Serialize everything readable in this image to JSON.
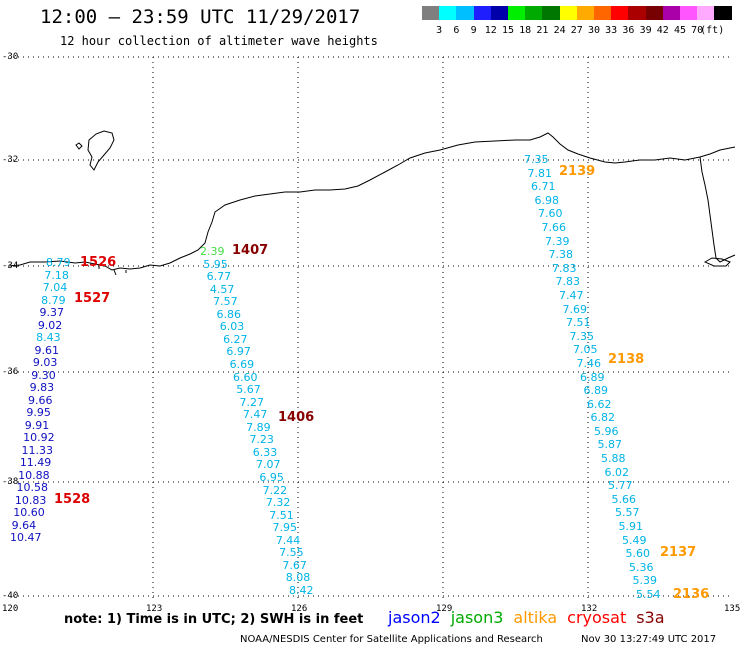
{
  "header": {
    "title": "12:00 – 23:59 UTC 11/29/2017",
    "subtitle": "12 hour collection of altimeter wave heights"
  },
  "color_scale": {
    "unit": "(ft)",
    "ticks": [
      "3",
      "6",
      "9",
      "12",
      "15",
      "18",
      "21",
      "24",
      "27",
      "30",
      "33",
      "36",
      "39",
      "42",
      "45",
      "70"
    ],
    "colors": [
      "#7f7f7f",
      "#00ffff",
      "#00bfff",
      "#1e1eff",
      "#0000aa",
      "#00ee00",
      "#00aa00",
      "#007700",
      "#ffff00",
      "#ffaa00",
      "#ff6600",
      "#ff0000",
      "#aa0000",
      "#770000",
      "#aa00aa",
      "#ff55ff",
      "#ffaaff",
      "#000000"
    ]
  },
  "axes": {
    "lat_labels": [
      "-30",
      "-32",
      "-34",
      "-36",
      "-38",
      "-40"
    ],
    "lon_labels": [
      "120",
      "123",
      "126",
      "129",
      "132",
      "135"
    ]
  },
  "wave_heights": {
    "track_a": [
      "8.79",
      "7.18",
      "7.04",
      "8.79",
      "9.37",
      "9.02",
      "8.43",
      "9.61",
      "9.03",
      "9.30",
      "9.83",
      "9.66",
      "9.95",
      "9.91",
      "10.92",
      "11.33",
      "11.49",
      "10.88",
      "10.58",
      "10.83",
      "10.60",
      "9.64",
      "10.47"
    ],
    "track_b": [
      "2.39",
      "5.95",
      "6.77",
      "4.57",
      "7.57",
      "6.86",
      "6.03",
      "6.27",
      "6.97",
      "6.69",
      "6.60",
      "5.67",
      "7.27",
      "7.47",
      "7.89",
      "7.23",
      "6.33",
      "7.07",
      "6.95",
      "7.22",
      "7.32",
      "7.51",
      "7.95",
      "7.44",
      "7.55",
      "7.67",
      "8.08",
      "8.42"
    ],
    "track_c": [
      "7.35",
      "7.81",
      "6.71",
      "6.98",
      "7.60",
      "7.66",
      "7.39",
      "7.38",
      "7.83",
      "7.83",
      "7.47",
      "7.69",
      "7.51",
      "7.35",
      "7.05",
      "7.46",
      "6.89",
      "6.89",
      "6.62",
      "6.82",
      "5.96",
      "5.87",
      "5.88",
      "6.02",
      "5.77",
      "5.66",
      "5.57",
      "5.91",
      "5.49",
      "5.60",
      "5.36",
      "5.39",
      "5.54"
    ]
  },
  "pass_numbers": {
    "p1526": "1526",
    "p1527": "1527",
    "p1528": "1528",
    "p1407": "1407",
    "p1406": "1406",
    "p2139": "2139",
    "p2138": "2138",
    "p2137": "2137",
    "p2136": "2136"
  },
  "footer": {
    "note": "note: 1) Time is in UTC; 2) SWH is in feet",
    "satellites": [
      {
        "name": "jason2",
        "color": "#0000ff"
      },
      {
        "name": "jason3",
        "color": "#00aa00"
      },
      {
        "name": "altika",
        "color": "#ff9900"
      },
      {
        "name": "cryosat",
        "color": "#ff0000"
      },
      {
        "name": "s3a",
        "color": "#880000"
      }
    ],
    "credit": "NOAA/NESDIS Center for Satellite Applications and Research",
    "timestamp": "Nov 30 13:27:49 UTC 2017"
  },
  "colors": {
    "jason2": "#0000aa",
    "altika_track": "#00bbee",
    "jason3_light": "#44dd44",
    "s3a": "#aa0000",
    "cryosat": "#dd0000",
    "altika": "#ff9900"
  }
}
